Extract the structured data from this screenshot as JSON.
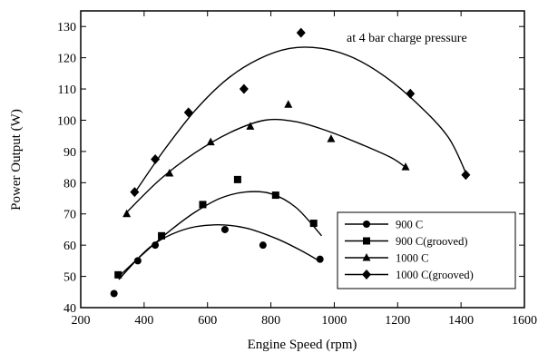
{
  "chart_data": {
    "type": "scatter",
    "title": "",
    "xlabel": "Engine Speed (rpm)",
    "ylabel": "Power Output (W)",
    "xlim": [
      200,
      1600
    ],
    "ylim": [
      40,
      135
    ],
    "xticks": [
      200,
      400,
      600,
      800,
      1000,
      1200,
      1400,
      1600
    ],
    "yticks": [
      40,
      50,
      60,
      70,
      80,
      90,
      100,
      110,
      120,
      130
    ],
    "grid": false,
    "legend_position": "bottom-right",
    "annotation": "at 4 bar charge pressure",
    "series": [
      {
        "name": "900 C",
        "marker": "circle",
        "points": [
          [
            305,
            44.5
          ],
          [
            380,
            55
          ],
          [
            435,
            60
          ],
          [
            655,
            65
          ],
          [
            775,
            60
          ],
          [
            955,
            55.5
          ]
        ],
        "fit": [
          [
            320,
            49
          ],
          [
            420,
            59.5
          ],
          [
            520,
            64.8
          ],
          [
            620,
            66.5
          ],
          [
            720,
            65.5
          ],
          [
            820,
            62
          ],
          [
            900,
            58
          ],
          [
            960,
            54.5
          ]
        ]
      },
      {
        "name": "900 C(grooved)",
        "marker": "square",
        "points": [
          [
            318,
            50.5
          ],
          [
            455,
            63
          ],
          [
            585,
            73
          ],
          [
            695,
            81
          ],
          [
            815,
            76
          ],
          [
            935,
            67
          ]
        ],
        "fit": [
          [
            320,
            50
          ],
          [
            400,
            57.5
          ],
          [
            480,
            64.5
          ],
          [
            560,
            70.5
          ],
          [
            640,
            75
          ],
          [
            720,
            77
          ],
          [
            800,
            76.5
          ],
          [
            880,
            72
          ],
          [
            960,
            63
          ]
        ]
      },
      {
        "name": "1000 C",
        "marker": "triangle",
        "points": [
          [
            345,
            70
          ],
          [
            480,
            83
          ],
          [
            610,
            93
          ],
          [
            735,
            98
          ],
          [
            855,
            105
          ],
          [
            990,
            94
          ],
          [
            1225,
            85
          ]
        ],
        "fit": [
          [
            340,
            70
          ],
          [
            450,
            81
          ],
          [
            560,
            89.5
          ],
          [
            670,
            96
          ],
          [
            780,
            100
          ],
          [
            880,
            99.5
          ],
          [
            980,
            96.5
          ],
          [
            1080,
            92.5
          ],
          [
            1180,
            88
          ],
          [
            1230,
            84.5
          ]
        ]
      },
      {
        "name": "1000 C(grooved)",
        "marker": "diamond",
        "points": [
          [
            370,
            77
          ],
          [
            435,
            87.5
          ],
          [
            540,
            102.5
          ],
          [
            715,
            110
          ],
          [
            895,
            128
          ],
          [
            1240,
            108.5
          ],
          [
            1415,
            82.5
          ]
        ],
        "fit": [
          [
            365,
            76
          ],
          [
            460,
            90
          ],
          [
            560,
            103
          ],
          [
            660,
            113
          ],
          [
            760,
            119.5
          ],
          [
            860,
            123
          ],
          [
            960,
            123
          ],
          [
            1060,
            120
          ],
          [
            1160,
            114
          ],
          [
            1260,
            105.5
          ],
          [
            1360,
            94.5
          ],
          [
            1420,
            82
          ]
        ]
      }
    ]
  }
}
